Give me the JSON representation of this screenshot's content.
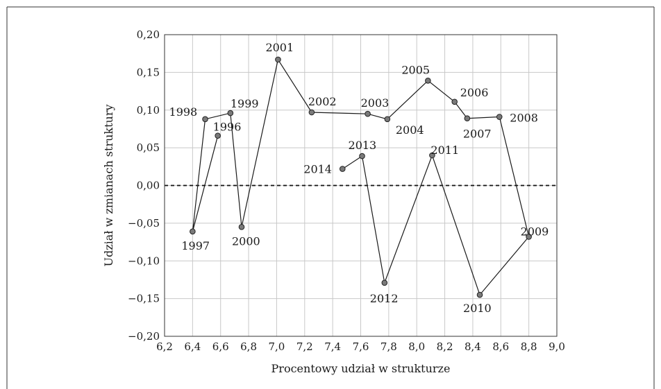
{
  "chart_data": {
    "type": "scatter",
    "connected": true,
    "title": "",
    "xlabel": "Procentowy udział w strukturze",
    "ylabel": "Udział w zmianach struktury",
    "xlim": [
      6.2,
      9.0
    ],
    "ylim": [
      -0.2,
      0.2
    ],
    "x_ticks": [
      "6,2",
      "6,4",
      "6,6",
      "6,8",
      "7,0",
      "7,2",
      "7,4",
      "7,6",
      "7,8",
      "8,0",
      "8,2",
      "8,4",
      "8,6",
      "8,8",
      "9,0"
    ],
    "y_ticks": [
      "0,20",
      "0,15",
      "0,10",
      "0,05",
      "0,00",
      "−0,05",
      "−0,10",
      "−0,15",
      "−0,20"
    ],
    "grid": true,
    "reference_line": {
      "y": 0.0,
      "style": "dashed"
    },
    "points": [
      {
        "year": "1996",
        "x": 6.58,
        "y": 0.066
      },
      {
        "year": "1997",
        "x": 6.4,
        "y": -0.061
      },
      {
        "year": "1998",
        "x": 6.49,
        "y": 0.088
      },
      {
        "year": "1999",
        "x": 6.67,
        "y": 0.096
      },
      {
        "year": "2000",
        "x": 6.75,
        "y": -0.055
      },
      {
        "year": "2001",
        "x": 7.01,
        "y": 0.167
      },
      {
        "year": "2002",
        "x": 7.25,
        "y": 0.097
      },
      {
        "year": "2003",
        "x": 7.65,
        "y": 0.095
      },
      {
        "year": "2004",
        "x": 7.79,
        "y": 0.088
      },
      {
        "year": "2005",
        "x": 8.08,
        "y": 0.139
      },
      {
        "year": "2006",
        "x": 8.27,
        "y": 0.111
      },
      {
        "year": "2007",
        "x": 8.36,
        "y": 0.089
      },
      {
        "year": "2008",
        "x": 8.59,
        "y": 0.091
      },
      {
        "year": "2009",
        "x": 8.8,
        "y": -0.068
      },
      {
        "year": "2010",
        "x": 8.45,
        "y": -0.145
      },
      {
        "year": "2011",
        "x": 8.11,
        "y": 0.04
      },
      {
        "year": "2012",
        "x": 7.77,
        "y": -0.129
      },
      {
        "year": "2013",
        "x": 7.61,
        "y": 0.039
      },
      {
        "year": "2014",
        "x": 7.47,
        "y": 0.022
      }
    ],
    "line_order": [
      "1996",
      "1997",
      "1998",
      "1999",
      "2000",
      "2001",
      "2002",
      "2003",
      "2004",
      "2005",
      "2006",
      "2007",
      "2008",
      "2009",
      "2010",
      "2011",
      "2012",
      "2013",
      "2014"
    ],
    "colors": {
      "marker": "#7a7a7a",
      "line": "#1a1a1a",
      "grid": "#c8c8c8"
    }
  }
}
